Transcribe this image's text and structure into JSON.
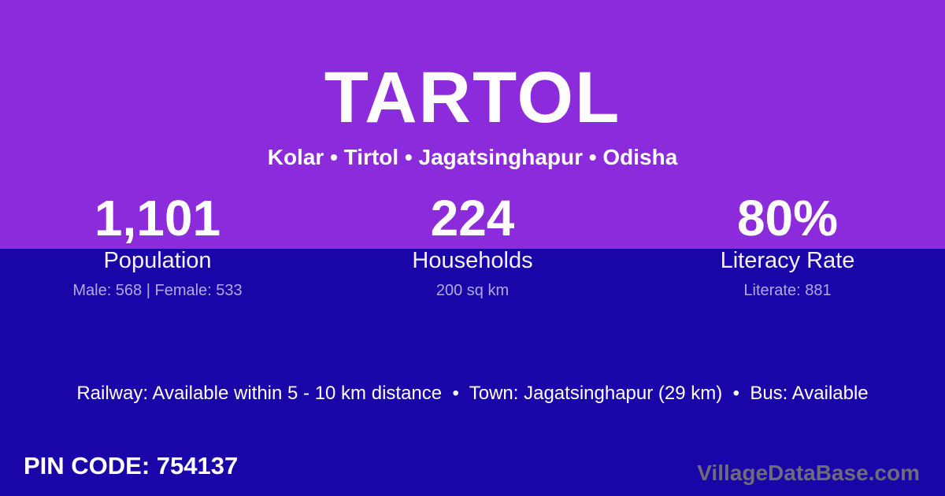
{
  "page": {
    "title": "TARTOL",
    "subtitle": "Kolar • Tirtol • Jagatsinghapur • Odisha",
    "stats": [
      {
        "value": "1,101",
        "label": "Population",
        "detail": "Male: 568 | Female: 533"
      },
      {
        "value": "224",
        "label": "Households",
        "detail": "200 sq km"
      },
      {
        "value": "80%",
        "label": "Literacy Rate",
        "detail": "Literate: 881"
      }
    ],
    "transport_line": "Railway: Available within 5 - 10 km distance  •  Town: Jagatsinghapur (29 km)  •  Bus: Available",
    "pin_code_label": "PIN CODE: 754137",
    "watermark": "VillageDataBase.com",
    "colors": {
      "top_bg": "#8C2BDC",
      "bottom_bg": "#1A05A8",
      "detail_text": "#B3A8E6",
      "watermark_text": "#6E6C79"
    }
  }
}
